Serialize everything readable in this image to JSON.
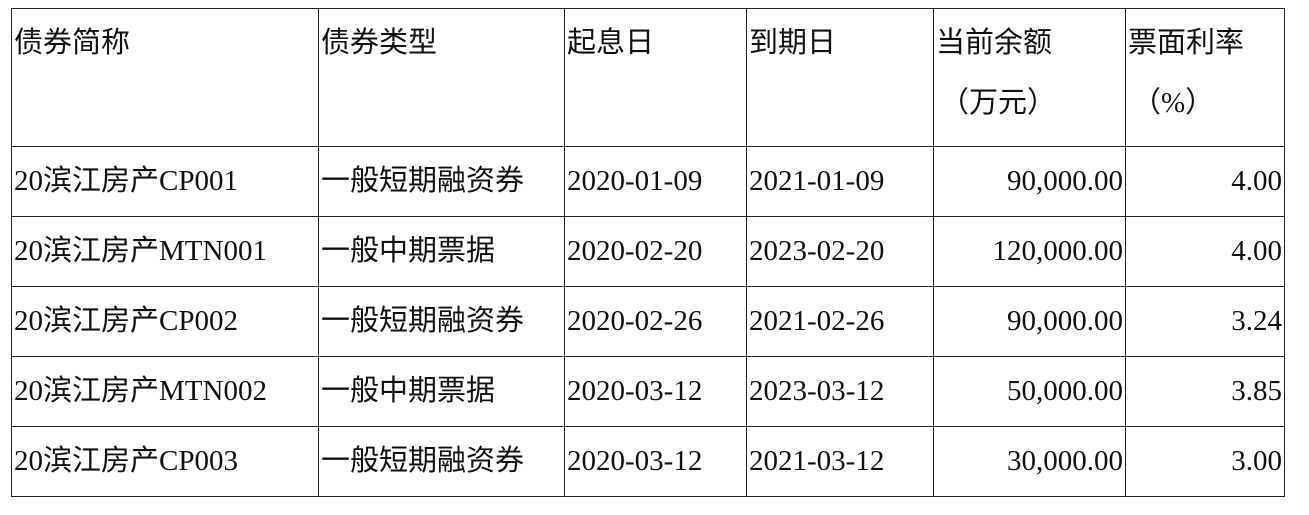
{
  "table": {
    "headers": [
      {
        "line1": "债券简称",
        "line2": ""
      },
      {
        "line1": "债券类型",
        "line2": ""
      },
      {
        "line1": "起息日",
        "line2": ""
      },
      {
        "line1": "到期日",
        "line2": ""
      },
      {
        "line1": "当前余额",
        "line2": "（万元）"
      },
      {
        "line1": "票面利率",
        "line2": "（%）"
      }
    ],
    "rows": [
      [
        "20滨江房产CP001",
        "一般短期融资券",
        "2020-01-09",
        "2021-01-09",
        "90,000.00",
        "4.00"
      ],
      [
        "20滨江房产MTN001",
        "一般中期票据",
        "2020-02-20",
        "2023-02-20",
        "120,000.00",
        "4.00"
      ],
      [
        "20滨江房产CP002",
        "一般短期融资券",
        "2020-02-26",
        "2021-02-26",
        "90,000.00",
        "3.24"
      ],
      [
        "20滨江房产MTN002",
        "一般中期票据",
        "2020-03-12",
        "2023-03-12",
        "50,000.00",
        "3.85"
      ],
      [
        "20滨江房产CP003",
        "一般短期融资券",
        "2020-03-12",
        "2021-03-12",
        "30,000.00",
        "3.00"
      ]
    ]
  }
}
